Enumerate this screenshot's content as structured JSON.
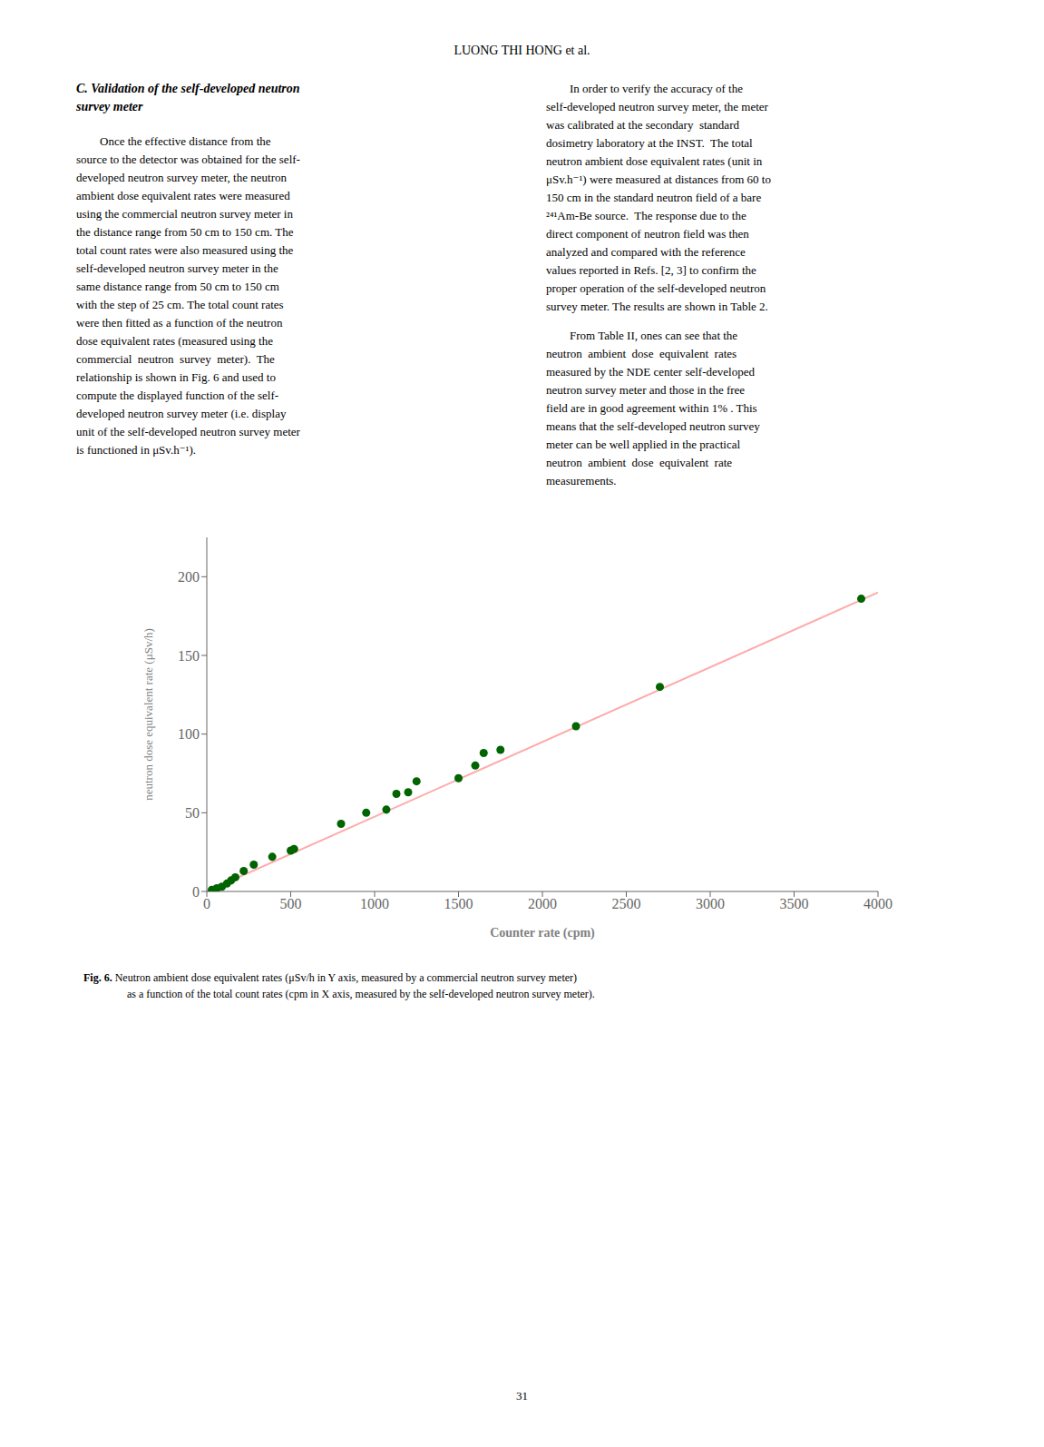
{
  "chart_data": {
    "type": "scatter",
    "xlabel": "Counter rate (cpm)",
    "ylabel": "neutron dose equivalent rate (μSv/h)",
    "xlim": [
      0,
      4000
    ],
    "ylim": [
      0,
      225
    ],
    "xticks": [
      0,
      500,
      1000,
      1500,
      2000,
      2500,
      3000,
      3500,
      4000
    ],
    "yticks": [
      0,
      50,
      100,
      150,
      200
    ],
    "grid": false,
    "series": [
      {
        "type": "line",
        "line_style": "solid",
        "color": "#ffaaaa",
        "x": [
          0,
          4000
        ],
        "values": [
          0,
          190
        ]
      },
      {
        "type": "scatter",
        "marker": "circle",
        "color": "#006400",
        "x": [
          30,
          60,
          90,
          120,
          145,
          170,
          220,
          280,
          390,
          500,
          520,
          800,
          950,
          1070,
          1130,
          1200,
          1250,
          1500,
          1600,
          1650,
          1750,
          2200,
          2700,
          3900
        ],
        "values": [
          1,
          2,
          3,
          5,
          7,
          9,
          13,
          17,
          22,
          26,
          27,
          43,
          50,
          52,
          62,
          63,
          70,
          72,
          80,
          88,
          90,
          105,
          130,
          186
        ]
      }
    ],
    "annotations": {
      "page_header": "LUONG THI HONG et al.",
      "left_column": [
        [
          "C. Validation of the self-developed neutron",
          "survey meter"
        ],
        [
          "        Once the effective distance from the",
          "source to the detector was obtained for the self-",
          "developed neutron survey meter, the neutron",
          "ambient dose equivalent rates were measured",
          "using the commercial neutron survey meter in",
          "the distance range from 50 cm to 150 cm. The",
          "total count rates were also measured using the",
          "self-developed neutron survey meter in the",
          "same distance range from 50 cm to 150 cm",
          "with the step of 25 cm. The total count rates",
          "were then fitted as a function of the neutron",
          "dose equivalent rates (measured using the",
          "commercial  neutron  survey  meter).  The",
          "relationship is shown in Fig. 6 and used to",
          "compute the displayed function of the self-",
          "developed neutron survey meter (i.e. display",
          "unit of the self-developed neutron survey meter",
          "is functioned in μSv.h⁻¹)."
        ]
      ],
      "right_column": [
        [
          "        In order to verify the accuracy of the",
          "self-developed neutron survey meter, the meter",
          "was calibrated at the secondary  standard",
          "dosimetry laboratory at the INST.  The total",
          "neutron ambient dose equivalent rates (unit in",
          "μSv.h⁻¹) were measured at distances from 60 to",
          "150 cm in the standard neutron field of a bare",
          "²⁴¹Am-Be source.  The response due to the",
          "direct component of neutron field was then",
          "analyzed and compared with the reference",
          "values reported in Refs. [2, 3] to confirm the",
          "proper operation of the self-developed neutron",
          "survey meter. The results are shown in Table 2."
        ],
        [
          "        From Table II, ones can see that the",
          "neutron  ambient  dose  equivalent  rates",
          "measured by the NDE center self-developed",
          "neutron survey meter and those in the free",
          "field are in good agreement within 1% . This",
          "means that the self-developed neutron survey",
          "meter can be well applied in the practical",
          "neutron  ambient  dose  equivalent  rate",
          "measurements."
        ]
      ],
      "caption": [
        "Fig. 6.",
        " Neutron ambient dose equivalent rates (μSv/h in Y axis, measured by a commercial neutron survey meter)",
        "as a function of the total count rates (cpm in X axis, measured by the self-developed neutron survey meter)."
      ],
      "page_number": "31"
    }
  }
}
